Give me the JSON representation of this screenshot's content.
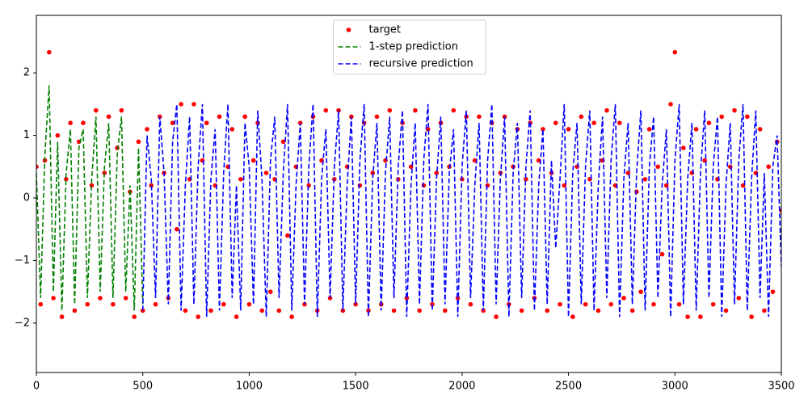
{
  "chart_data": {
    "type": "line",
    "x": [
      0,
      20,
      40,
      60,
      80,
      100,
      120,
      140,
      160,
      180,
      200,
      220,
      240,
      260,
      280,
      300,
      320,
      340,
      360,
      380,
      400,
      420,
      440,
      460,
      480,
      500,
      520,
      540,
      560,
      580,
      600,
      620,
      640,
      660,
      680,
      700,
      720,
      740,
      760,
      780,
      800,
      820,
      840,
      860,
      880,
      900,
      920,
      940,
      960,
      980,
      1000,
      1020,
      1040,
      1060,
      1080,
      1100,
      1120,
      1140,
      1160,
      1180,
      1200,
      1220,
      1240,
      1260,
      1280,
      1300,
      1320,
      1340,
      1360,
      1380,
      1400,
      1420,
      1440,
      1460,
      1480,
      1500,
      1520,
      1540,
      1560,
      1580,
      1600,
      1620,
      1640,
      1660,
      1680,
      1700,
      1720,
      1740,
      1760,
      1780,
      1800,
      1820,
      1840,
      1860,
      1880,
      1900,
      1920,
      1940,
      1960,
      1980,
      2000,
      2020,
      2040,
      2060,
      2080,
      2100,
      2120,
      2140,
      2160,
      2180,
      2200,
      2220,
      2240,
      2260,
      2280,
      2300,
      2320,
      2340,
      2360,
      2380,
      2400,
      2420,
      2440,
      2460,
      2480,
      2500,
      2520,
      2540,
      2560,
      2580,
      2600,
      2620,
      2640,
      2660,
      2680,
      2700,
      2720,
      2740,
      2760,
      2780,
      2800,
      2820,
      2840,
      2860,
      2880,
      2900,
      2920,
      2940,
      2960,
      2980,
      3000,
      3020,
      3040,
      3060,
      3080,
      3100,
      3120,
      3140,
      3160,
      3180,
      3200,
      3220,
      3240,
      3260,
      3280,
      3300,
      3320,
      3340,
      3360,
      3380,
      3400,
      3420,
      3440,
      3460,
      3480,
      3500
    ],
    "series": [
      {
        "name": "target",
        "color": "#ff0000",
        "style": "points",
        "values": [
          0.5,
          -1.7,
          0.6,
          2.33,
          -1.6,
          1.0,
          -1.9,
          0.3,
          1.2,
          -1.8,
          0.9,
          1.2,
          -1.7,
          0.2,
          1.4,
          -1.6,
          0.4,
          1.3,
          -1.7,
          0.8,
          1.4,
          -1.6,
          0.1,
          -1.9,
          0.9,
          -1.8,
          1.1,
          0.2,
          -1.7,
          1.3,
          0.4,
          -1.6,
          1.2,
          -0.5,
          1.5,
          -1.8,
          0.3,
          1.5,
          -1.9,
          0.6,
          1.2,
          -1.8,
          0.2,
          1.3,
          -1.7,
          0.5,
          1.1,
          -1.9,
          0.3,
          1.3,
          -1.7,
          0.6,
          1.2,
          -1.8,
          0.4,
          -1.5,
          0.3,
          -1.8,
          0.9,
          -0.6,
          -1.9,
          0.5,
          1.2,
          -1.7,
          0.2,
          1.3,
          -1.8,
          0.6,
          1.4,
          -1.6,
          0.3,
          1.4,
          -1.8,
          0.5,
          1.3,
          -1.7,
          0.2,
          1.2,
          -1.8,
          0.4,
          1.3,
          -1.7,
          0.6,
          1.4,
          -1.8,
          0.3,
          1.2,
          -1.6,
          0.5,
          1.4,
          -1.8,
          0.2,
          1.1,
          -1.7,
          0.4,
          1.2,
          -1.8,
          0.5,
          1.4,
          -1.6,
          0.3,
          1.3,
          -1.7,
          0.6,
          1.3,
          -1.8,
          0.2,
          1.2,
          -1.9,
          0.4,
          1.3,
          -1.7,
          0.5,
          1.1,
          -1.8,
          0.3,
          1.2,
          -1.6,
          0.6,
          1.1,
          -1.8,
          0.4,
          1.2,
          -1.7,
          0.2,
          1.1,
          -1.9,
          0.5,
          1.3,
          -1.7,
          0.3,
          1.2,
          -1.8,
          0.6,
          1.4,
          -1.7,
          0.2,
          1.2,
          -1.6,
          0.4,
          -1.8,
          0.1,
          -1.5,
          0.3,
          1.1,
          -1.7,
          0.5,
          -0.9,
          0.2,
          1.5,
          2.33,
          -1.7,
          0.8,
          -1.9,
          0.4,
          1.1,
          -1.9,
          0.6,
          1.2,
          -1.7,
          0.3,
          1.3,
          -1.8,
          0.5,
          1.4,
          -1.6,
          0.2,
          1.3,
          -1.9,
          0.4,
          1.1,
          -1.8,
          0.5,
          -1.5,
          0.9,
          -0.2
        ]
      },
      {
        "name": "1-step prediction",
        "color": "#008000",
        "style": "dashed",
        "values": [
          0.4,
          -1.6,
          0.7,
          1.8,
          -1.5,
          0.9,
          -1.8,
          0.4,
          1.1,
          -1.7,
          0.8,
          1.1,
          -1.6,
          0.3,
          1.3,
          -1.5,
          0.5,
          1.2,
          -1.6,
          0.7,
          1.3,
          -1.5,
          0.2,
          -1.8,
          0.8,
          -1.7,
          null,
          null,
          null,
          null,
          null,
          null,
          null,
          null,
          null,
          null,
          null,
          null,
          null,
          null,
          null,
          null,
          null,
          null,
          null,
          null,
          null,
          null,
          null,
          null,
          null,
          null,
          null,
          null,
          null,
          null,
          null,
          null,
          null,
          null,
          null,
          null,
          null,
          null,
          null,
          null,
          null,
          null,
          null,
          null,
          null,
          null,
          null,
          null,
          null,
          null,
          null,
          null,
          null,
          null,
          null,
          null,
          null,
          null,
          null,
          null,
          null,
          null,
          null,
          null,
          null,
          null,
          null,
          null,
          null,
          null,
          null,
          null,
          null,
          null,
          null,
          null,
          null,
          null,
          null,
          null,
          null,
          null,
          null,
          null,
          null,
          null,
          null,
          null,
          null,
          null,
          null,
          null,
          null,
          null,
          null,
          null,
          null,
          null,
          null,
          null,
          null,
          null,
          null,
          null,
          null,
          null,
          null,
          null,
          null,
          null,
          null,
          null,
          null,
          null,
          null,
          null,
          null,
          null,
          null,
          null,
          null,
          null,
          null,
          null,
          null,
          null,
          null,
          null,
          null,
          null,
          null,
          null,
          null,
          null,
          null,
          null,
          null,
          null,
          null,
          null,
          null,
          null,
          null,
          null,
          null,
          null,
          null,
          null,
          null,
          null
        ]
      },
      {
        "name": "recursive prediction",
        "color": "#0000ff",
        "style": "dashed",
        "values": [
          null,
          null,
          null,
          null,
          null,
          null,
          null,
          null,
          null,
          null,
          null,
          null,
          null,
          null,
          null,
          null,
          null,
          null,
          null,
          null,
          null,
          null,
          null,
          null,
          null,
          -1.8,
          1.0,
          0.3,
          -1.6,
          1.3,
          0.4,
          -1.7,
          0.9,
          1.5,
          -1.8,
          0.2,
          1.3,
          -1.7,
          0.5,
          1.5,
          -1.9,
          0.3,
          1.1,
          -1.8,
          0.4,
          1.5,
          -1.6,
          0.2,
          -1.8,
          1.2,
          0.5,
          -1.7,
          1.4,
          0.3,
          -1.9,
          0.6,
          1.3,
          -1.6,
          0.4,
          1.5,
          -1.8,
          0.2,
          1.2,
          -1.7,
          0.5,
          1.5,
          -1.9,
          0.3,
          1.1,
          -1.6,
          0.5,
          1.4,
          -1.8,
          0.2,
          1.3,
          -1.7,
          0.6,
          1.5,
          -1.9,
          0.3,
          1.2,
          -1.8,
          0.4,
          1.3,
          -1.6,
          0.5,
          1.4,
          -1.9,
          0.2,
          1.2,
          -1.7,
          0.6,
          1.5,
          -1.8,
          0.3,
          1.3,
          -1.7,
          0.4,
          1.1,
          -1.9,
          0.5,
          1.4,
          -1.6,
          0.2,
          1.2,
          -1.8,
          0.6,
          1.5,
          -1.7,
          0.3,
          1.3,
          -1.9,
          0.4,
          1.2,
          -1.6,
          0.5,
          1.4,
          -1.8,
          0.2,
          1.1,
          -1.7,
          0.6,
          -0.8,
          0.3,
          1.5,
          -1.9,
          0.4,
          1.2,
          -1.7,
          0.5,
          1.4,
          -1.8,
          0.2,
          1.3,
          -1.6,
          0.6,
          1.5,
          -1.9,
          0.3,
          1.2,
          -1.7,
          0.4,
          1.4,
          -1.8,
          0.5,
          1.3,
          -1.6,
          0.2,
          1.1,
          -1.9,
          0.6,
          1.5,
          -1.7,
          0.3,
          1.2,
          -1.8,
          0.4,
          1.4,
          -1.6,
          0.5,
          1.3,
          -1.9,
          0.2,
          1.2,
          -1.7,
          0.6,
          1.5,
          -1.8,
          0.3,
          1.4,
          -1.6,
          0.4,
          -1.9,
          0.5,
          1.0,
          -1.1
        ]
      }
    ],
    "xlim": [
      0,
      3500
    ],
    "xticks": [
      0,
      500,
      1000,
      1500,
      2000,
      2500,
      3000,
      3500
    ],
    "ylim": [
      -2.79,
      2.92
    ],
    "yticks": [
      {
        "value": -2,
        "label": "−2"
      },
      {
        "value": -1,
        "label": "−1"
      },
      0,
      1,
      2
    ],
    "legend": "upper center"
  }
}
